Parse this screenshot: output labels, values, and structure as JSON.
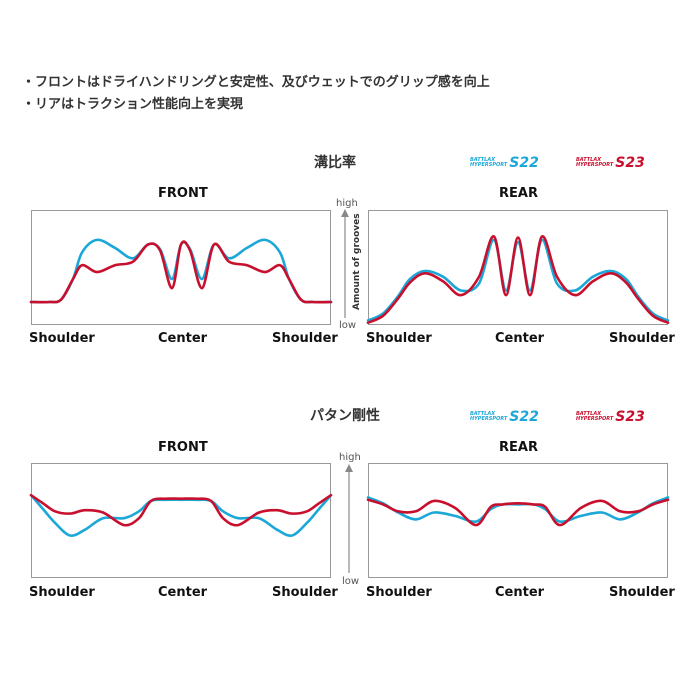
{
  "bullets": [
    "・フロントはドライハンドリングと安定性、及びウェットでのグリップ感を向上",
    "・リアはトラクション性能向上を実現"
  ],
  "colors": {
    "s22": "#1ba8d8",
    "s23": "#c8102e",
    "frame": "#999999"
  },
  "legend": {
    "s22": {
      "brand_top": "BATTLAX",
      "brand_bottom": "HYPERSPORT",
      "model": "S22"
    },
    "s23": {
      "brand_top": "BATTLAX",
      "brand_bottom": "HYPERSPORT",
      "model": "S23"
    }
  },
  "axis": {
    "high": "high",
    "low": "low",
    "groove_label": "Amount of grooves"
  },
  "sections": [
    {
      "title": "溝比率",
      "front_title": "FRONT",
      "rear_title": "REAR",
      "x_labels": [
        "Shoulder",
        "Center",
        "Shoulder"
      ]
    },
    {
      "title": "パタン剛性",
      "front_title": "FRONT",
      "rear_title": "REAR",
      "x_labels": [
        "Shoulder",
        "Center",
        "Shoulder"
      ]
    }
  ],
  "chart_data": [
    {
      "type": "line",
      "title": "溝比率 FRONT",
      "ylim": [
        0,
        1
      ],
      "series": [
        {
          "name": "S22",
          "x": [
            0,
            0.06,
            0.1,
            0.14,
            0.17,
            0.22,
            0.28,
            0.34,
            0.39,
            0.43,
            0.47,
            0.5,
            0.53,
            0.57,
            0.61,
            0.66,
            0.72,
            0.78,
            0.83,
            0.86,
            0.9,
            0.94,
            1.0
          ],
          "y": [
            0.2,
            0.2,
            0.22,
            0.4,
            0.63,
            0.74,
            0.67,
            0.58,
            0.7,
            0.66,
            0.4,
            0.7,
            0.66,
            0.4,
            0.7,
            0.58,
            0.67,
            0.74,
            0.63,
            0.4,
            0.22,
            0.2,
            0.2
          ]
        },
        {
          "name": "S23",
          "x": [
            0,
            0.06,
            0.1,
            0.14,
            0.17,
            0.22,
            0.28,
            0.34,
            0.39,
            0.43,
            0.47,
            0.5,
            0.53,
            0.57,
            0.61,
            0.66,
            0.72,
            0.78,
            0.83,
            0.86,
            0.9,
            0.94,
            1.0
          ],
          "y": [
            0.2,
            0.2,
            0.22,
            0.4,
            0.52,
            0.46,
            0.52,
            0.55,
            0.7,
            0.65,
            0.32,
            0.7,
            0.65,
            0.32,
            0.7,
            0.55,
            0.52,
            0.46,
            0.52,
            0.4,
            0.22,
            0.2,
            0.2
          ]
        }
      ]
    },
    {
      "type": "line",
      "title": "溝比率 REAR",
      "ylim": [
        0,
        1
      ],
      "series": [
        {
          "name": "S22",
          "x": [
            0,
            0.05,
            0.1,
            0.14,
            0.19,
            0.25,
            0.31,
            0.37,
            0.42,
            0.46,
            0.5,
            0.54,
            0.58,
            0.63,
            0.69,
            0.75,
            0.81,
            0.86,
            0.9,
            0.95,
            1.0
          ],
          "y": [
            0.04,
            0.1,
            0.25,
            0.4,
            0.47,
            0.42,
            0.3,
            0.36,
            0.74,
            0.3,
            0.72,
            0.3,
            0.74,
            0.36,
            0.3,
            0.42,
            0.47,
            0.4,
            0.25,
            0.1,
            0.04
          ]
        },
        {
          "name": "S23",
          "x": [
            0,
            0.05,
            0.1,
            0.14,
            0.19,
            0.25,
            0.31,
            0.37,
            0.42,
            0.46,
            0.5,
            0.54,
            0.58,
            0.63,
            0.69,
            0.75,
            0.81,
            0.86,
            0.9,
            0.95,
            1.0
          ],
          "y": [
            0.02,
            0.08,
            0.23,
            0.37,
            0.45,
            0.38,
            0.26,
            0.42,
            0.77,
            0.26,
            0.76,
            0.26,
            0.77,
            0.42,
            0.26,
            0.38,
            0.45,
            0.37,
            0.23,
            0.08,
            0.02
          ]
        }
      ]
    },
    {
      "type": "line",
      "title": "パタン剛性 FRONT",
      "ylim": [
        0,
        1
      ],
      "series": [
        {
          "name": "S22",
          "x": [
            0,
            0.04,
            0.08,
            0.13,
            0.18,
            0.24,
            0.31,
            0.36,
            0.4,
            0.45,
            0.5,
            0.55,
            0.6,
            0.64,
            0.69,
            0.76,
            0.82,
            0.87,
            0.92,
            0.96,
            1.0
          ],
          "y": [
            0.72,
            0.6,
            0.48,
            0.37,
            0.42,
            0.52,
            0.52,
            0.58,
            0.67,
            0.68,
            0.68,
            0.68,
            0.67,
            0.58,
            0.52,
            0.52,
            0.42,
            0.37,
            0.48,
            0.6,
            0.72
          ]
        },
        {
          "name": "S23",
          "x": [
            0,
            0.04,
            0.08,
            0.13,
            0.18,
            0.24,
            0.31,
            0.36,
            0.4,
            0.45,
            0.5,
            0.55,
            0.6,
            0.64,
            0.69,
            0.76,
            0.82,
            0.87,
            0.92,
            0.96,
            1.0
          ],
          "y": [
            0.72,
            0.65,
            0.58,
            0.56,
            0.59,
            0.57,
            0.46,
            0.52,
            0.67,
            0.69,
            0.69,
            0.69,
            0.67,
            0.52,
            0.46,
            0.57,
            0.59,
            0.56,
            0.58,
            0.65,
            0.72
          ]
        }
      ]
    },
    {
      "type": "line",
      "title": "パタン剛性 REAR",
      "ylim": [
        0,
        1
      ],
      "series": [
        {
          "name": "S22",
          "x": [
            0,
            0.05,
            0.1,
            0.16,
            0.22,
            0.29,
            0.36,
            0.41,
            0.45,
            0.5,
            0.55,
            0.59,
            0.64,
            0.71,
            0.78,
            0.84,
            0.9,
            0.95,
            1.0
          ],
          "y": [
            0.7,
            0.65,
            0.57,
            0.51,
            0.57,
            0.54,
            0.49,
            0.6,
            0.64,
            0.64,
            0.64,
            0.6,
            0.49,
            0.54,
            0.57,
            0.51,
            0.57,
            0.65,
            0.7
          ]
        },
        {
          "name": "S23",
          "x": [
            0,
            0.05,
            0.1,
            0.16,
            0.22,
            0.29,
            0.36,
            0.41,
            0.45,
            0.5,
            0.55,
            0.59,
            0.64,
            0.71,
            0.78,
            0.84,
            0.9,
            0.95,
            1.0
          ],
          "y": [
            0.68,
            0.64,
            0.58,
            0.58,
            0.67,
            0.61,
            0.46,
            0.62,
            0.64,
            0.65,
            0.64,
            0.62,
            0.46,
            0.61,
            0.67,
            0.58,
            0.58,
            0.64,
            0.68
          ]
        }
      ]
    }
  ]
}
